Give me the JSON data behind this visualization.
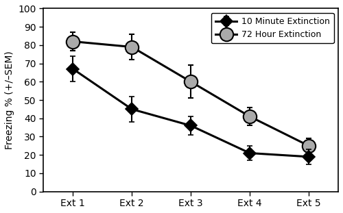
{
  "x_labels": [
    "Ext 1",
    "Ext 2",
    "Ext 3",
    "Ext 4",
    "Ext 5"
  ],
  "x_values": [
    1,
    2,
    3,
    4,
    5
  ],
  "group1_label": "10 Minute Extinction",
  "group1_values": [
    67,
    45,
    36,
    21,
    19
  ],
  "group1_sem": [
    7,
    7,
    5,
    4,
    4
  ],
  "group1_color": "#000000",
  "group1_marker": "D",
  "group1_marker_face": "#000000",
  "group2_label": "72 Hour Extinction",
  "group2_values": [
    82,
    79,
    60,
    41,
    25
  ],
  "group2_sem": [
    5,
    7,
    9,
    5,
    4
  ],
  "group2_color": "#000000",
  "group2_marker": "o",
  "group2_marker_face": "#aaaaaa",
  "ylabel": "Freezing % (+/–SEM)",
  "ylim": [
    0,
    100
  ],
  "yticks": [
    0,
    10,
    20,
    30,
    40,
    50,
    60,
    70,
    80,
    90,
    100
  ],
  "background_color": "#ffffff",
  "linewidth": 2.2,
  "markersize_diamond": 9,
  "markersize_circle": 14,
  "capsize": 3
}
